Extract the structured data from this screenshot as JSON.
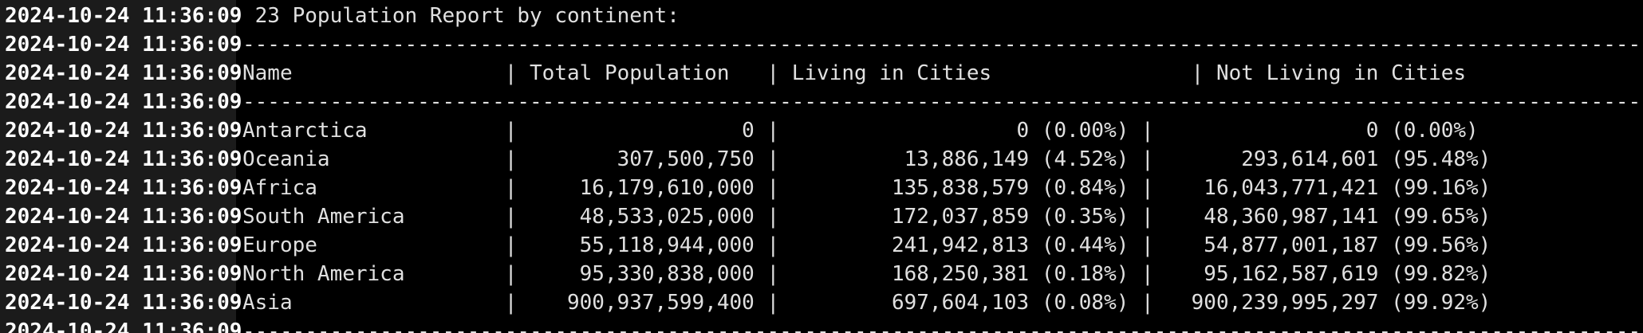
{
  "timestamp": "2024-10-24 11:36:09",
  "title_line": " 23 Population Report by continent:",
  "separator": "-------------------------------------------------------------------------------------------------------------------",
  "header_line": "Name                 | Total Population   | Living in Cities                | Not Living in Cities",
  "rows": [
    "Antarctica           |                  0 |                   0 (0.00%) |                 0 (0.00%)",
    "Oceania              |        307,500,750 |          13,886,149 (4.52%) |       293,614,601 (95.48%)",
    "Africa               |     16,179,610,000 |         135,838,579 (0.84%) |    16,043,771,421 (99.16%)",
    "South America        |     48,533,025,000 |         172,037,859 (0.35%) |    48,360,987,141 (99.65%)",
    "Europe               |     55,118,944,000 |         241,942,813 (0.44%) |    54,877,001,187 (99.56%)",
    "North America        |     95,330,838,000 |         168,250,381 (0.18%) |    95,162,587,619 (99.82%)",
    "Asia                 |    900,937,599,400 |         697,604,103 (0.08%) |   900,239,995,297 (99.92%)"
  ]
}
